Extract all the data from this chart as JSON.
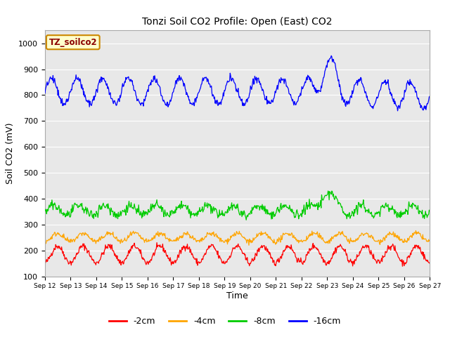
{
  "title": "Tonzi Soil CO2 Profile: Open (East) CO2",
  "ylabel": "Soil CO2 (mV)",
  "xlabel": "Time",
  "ylim": [
    100,
    1050
  ],
  "yticks": [
    100,
    200,
    300,
    400,
    500,
    600,
    700,
    800,
    900,
    1000
  ],
  "legend_label": "TZ_soilco2",
  "series_labels": [
    "-2cm",
    "-4cm",
    "-8cm",
    "-16cm"
  ],
  "series_colors": [
    "#ff0000",
    "#ffa500",
    "#00cc00",
    "#0000ff"
  ],
  "n_days": 15,
  "points_per_day": 48,
  "x_tick_labels": [
    "Sep 12",
    "Sep 13",
    "Sep 14",
    "Sep 15",
    "Sep 16",
    "Sep 17",
    "Sep 18",
    "Sep 19",
    "Sep 20",
    "Sep 21",
    "Sep 22",
    "Sep 23",
    "Sep 24",
    "Sep 25",
    "Sep 26",
    "Sep 27"
  ],
  "line_width": 0.9
}
